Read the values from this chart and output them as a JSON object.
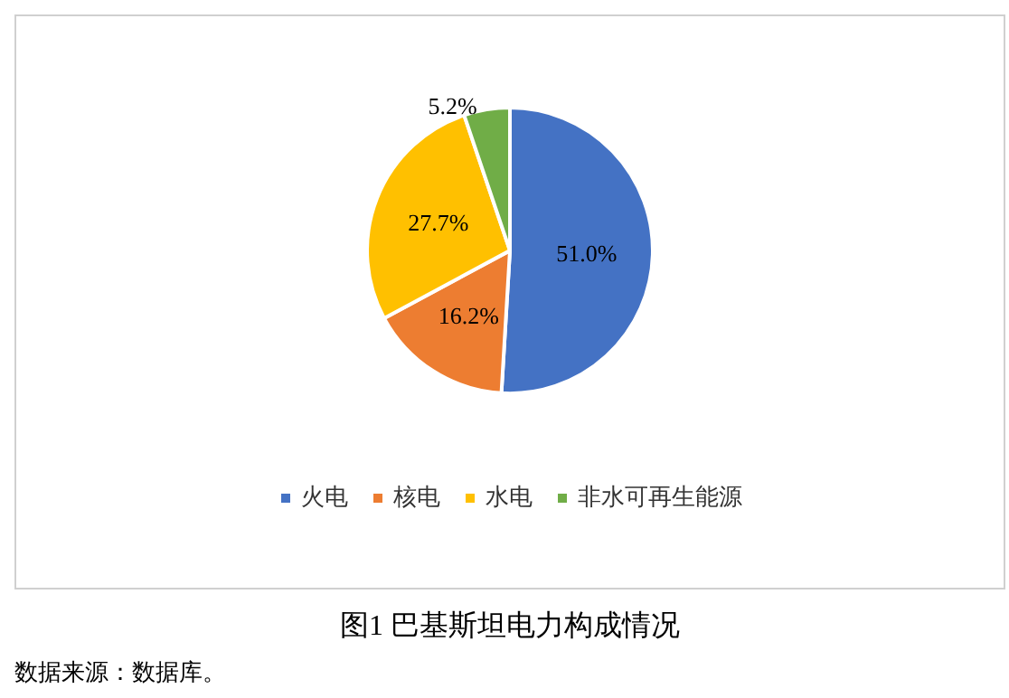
{
  "chart_data": {
    "type": "pie",
    "title": "图1  巴基斯坦电力构成情况",
    "categories": [
      "火电",
      "核电",
      "水电",
      "非水可再生能源"
    ],
    "values": [
      51.0,
      16.2,
      27.7,
      5.2
    ],
    "value_labels": [
      "51.0%",
      "16.2%",
      "27.7%",
      "5.2%"
    ],
    "colors": [
      "#4472c4",
      "#ed7d31",
      "#ffc000",
      "#70ad47"
    ],
    "legend": "bottom",
    "annotations": [
      "数据来源：数据库。"
    ]
  }
}
